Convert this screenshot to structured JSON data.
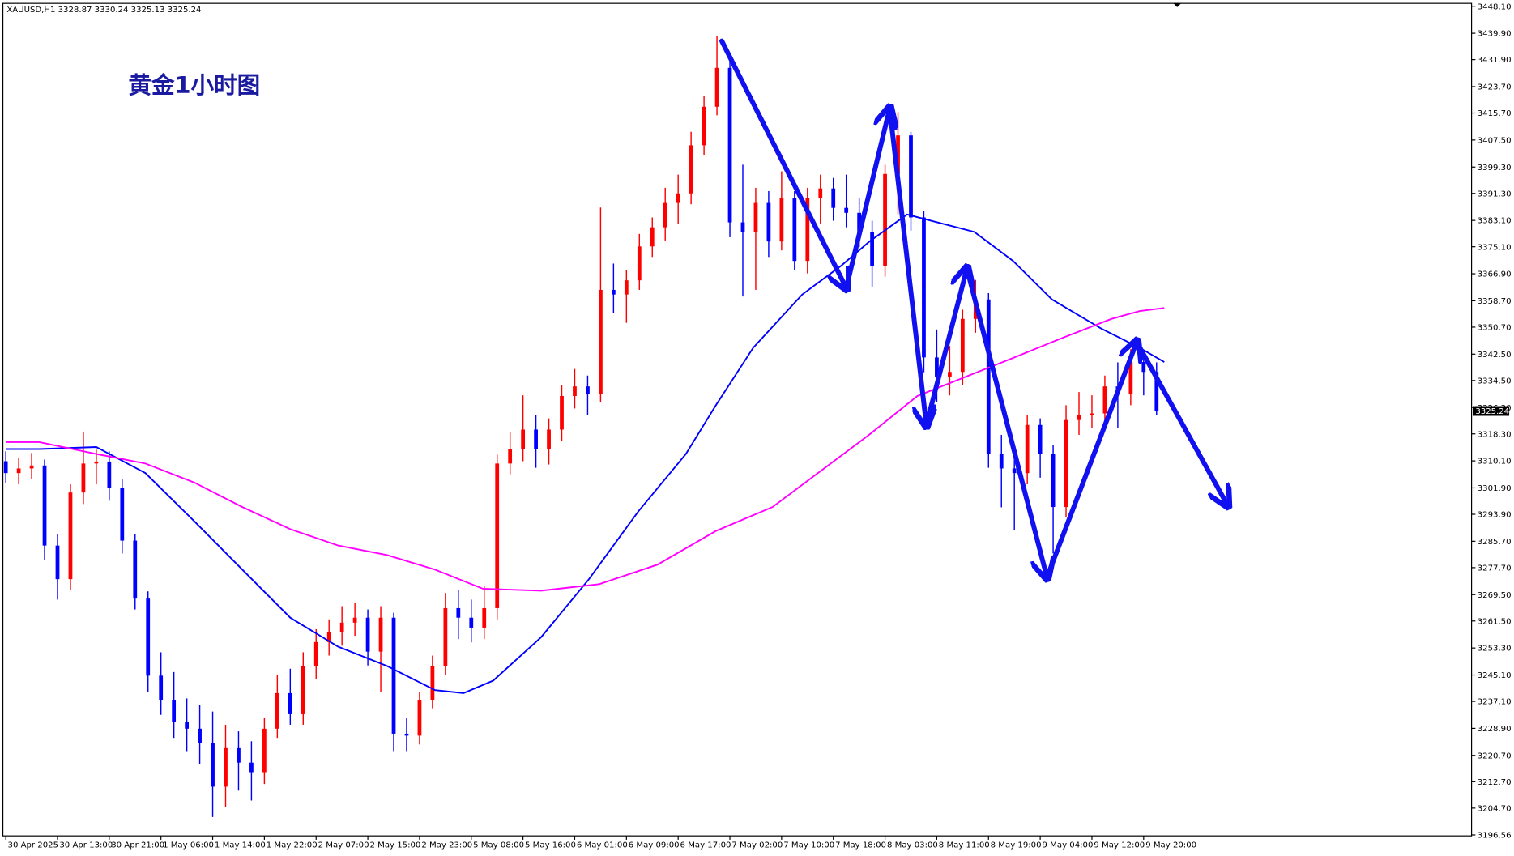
{
  "chart_data": {
    "type": "candlestick",
    "title": "黄金1小时图",
    "symbol_info": "XAUUSD,H1  3328.87 3330.24 3325.13 3325.24",
    "current_price": 3325.24,
    "up_color": "#ff0000",
    "down_color": "#0000ff",
    "ylim": [
      3196.56,
      3448.1
    ],
    "yticks": [
      {
        "value": 3448.1,
        "label": "3448.10"
      },
      {
        "value": 3439.9,
        "label": "3439.90"
      },
      {
        "value": 3431.9,
        "label": "3431.90"
      },
      {
        "value": 3423.7,
        "label": "3423.70"
      },
      {
        "value": 3415.7,
        "label": "3415.70"
      },
      {
        "value": 3407.5,
        "label": "3407.50"
      },
      {
        "value": 3399.3,
        "label": "3399.30"
      },
      {
        "value": 3391.3,
        "label": "3391.30"
      },
      {
        "value": 3383.1,
        "label": "3383.10"
      },
      {
        "value": 3375.1,
        "label": "3375.10"
      },
      {
        "value": 3366.9,
        "label": "3366.90"
      },
      {
        "value": 3358.7,
        "label": "3358.70"
      },
      {
        "value": 3350.7,
        "label": "3350.70"
      },
      {
        "value": 3342.5,
        "label": "3342.50"
      },
      {
        "value": 3334.5,
        "label": "3334.50"
      },
      {
        "value": 3326.3,
        "label": "3326.30"
      },
      {
        "value": 3318.3,
        "label": "3318.30"
      },
      {
        "value": 3310.1,
        "label": "3310.10"
      },
      {
        "value": 3301.9,
        "label": "3301.90"
      },
      {
        "value": 3293.9,
        "label": "3293.90"
      },
      {
        "value": 3285.7,
        "label": "3285.70"
      },
      {
        "value": 3277.7,
        "label": "3277.70"
      },
      {
        "value": 3269.5,
        "label": "3269.50"
      },
      {
        "value": 3261.5,
        "label": "3261.50"
      },
      {
        "value": 3253.3,
        "label": "3253.30"
      },
      {
        "value": 3245.1,
        "label": "3245.10"
      },
      {
        "value": 3237.1,
        "label": "3237.10"
      },
      {
        "value": 3228.9,
        "label": "3228.90"
      },
      {
        "value": 3220.7,
        "label": "3220.70"
      },
      {
        "value": 3212.7,
        "label": "3212.70"
      },
      {
        "value": 3204.7,
        "label": "3204.70"
      },
      3196.56
    ],
    "categories": [
      "30 Apr 2025",
      null,
      null,
      null,
      "30 Apr 13:00",
      null,
      null,
      null,
      "30 Apr 21:00",
      null,
      null,
      null,
      "1 May 06:00",
      null,
      null,
      null,
      "1 May 14:00",
      null,
      null,
      null,
      "1 May 22:00",
      null,
      null,
      null,
      "2 May 07:00",
      null,
      null,
      null,
      "2 May 15:00",
      null,
      null,
      null,
      "2 May 23:00",
      null,
      null,
      null,
      "5 May 08:00",
      null,
      null,
      null,
      "5 May 16:00",
      null,
      null,
      null,
      "6 May 01:00",
      null,
      null,
      null,
      "6 May 09:00",
      null,
      null,
      null,
      "6 May 17:00",
      null,
      null,
      null,
      "7 May 02:00",
      null,
      null,
      null,
      "7 May 10:00",
      null,
      null,
      null,
      "7 May 18:00",
      null,
      null,
      null,
      "8 May 03:00",
      null,
      null,
      null,
      "8 May 11:00",
      null,
      null,
      null,
      "8 May 19:00",
      null,
      null,
      null,
      "9 May 04:00",
      null,
      null,
      null,
      "9 May 12:00",
      null,
      null,
      null,
      "9 May 20:00",
      null
    ],
    "open": [
      3310.0,
      3306.4,
      3307.8,
      3308.7,
      3284.4,
      3274.2,
      3300.5,
      3309.3,
      3309.9,
      3302.0,
      3285.9,
      3268.3,
      3244.9,
      3237.6,
      3230.8,
      3228.8,
      3224.4,
      3211.2,
      3222.9,
      3218.5,
      3215.6,
      3228.8,
      3239.6,
      3233.2,
      3247.8,
      3255.1,
      3258.1,
      3261.0,
      3262.5,
      3252.2,
      3262.5,
      3227.3,
      3226.7,
      3237.6,
      3247.8,
      3265.4,
      3262.5,
      3259.5,
      3265.4,
      3309.3,
      3313.7,
      3319.6,
      3313.7,
      3319.6,
      3329.8,
      3332.7,
      3330.4,
      3362.0,
      3360.6,
      3364.9,
      3375.2,
      3381.0,
      3388.4,
      3391.3,
      3405.9,
      3417.6,
      3429.4,
      3382.5,
      3379.6,
      3388.4,
      3376.7,
      3389.8,
      3370.8,
      3389.8,
      3392.8,
      3386.9,
      3385.4,
      3379.6,
      3369.3,
      3397.2,
      3408.9,
      3384.0,
      3341.5,
      3335.7,
      3337.1,
      3353.2,
      3359.1,
      3312.2,
      3307.8,
      3306.4,
      3321.0,
      3312.2,
      3296.1,
      3322.5,
      3324.0,
      3324.5,
      3332.7,
      3330.4,
      3340.1,
      3337.1
    ],
    "high": [
      3313.0,
      3311.0,
      3312.5,
      3310.5,
      3288.0,
      3303.0,
      3319.0,
      3313.5,
      3313.0,
      3304.5,
      3288.0,
      3270.5,
      3252.0,
      3246.0,
      3238.0,
      3236.0,
      3234.0,
      3230.0,
      3228.0,
      3225.0,
      3232.0,
      3245.0,
      3247.0,
      3252.0,
      3259.0,
      3262.0,
      3266.0,
      3267.0,
      3265.0,
      3266.0,
      3264.0,
      3232.0,
      3240.0,
      3251.0,
      3270.0,
      3271.0,
      3268.0,
      3272.0,
      3312.0,
      3319.0,
      3330.0,
      3324.0,
      3323.0,
      3333.0,
      3338.0,
      3336.0,
      3387.0,
      3370.0,
      3368.0,
      3379.0,
      3384.0,
      3393.0,
      3397.0,
      3410.0,
      3421.0,
      3439.0,
      3432.0,
      3400.0,
      3393.0,
      3392.0,
      3398.0,
      3392.0,
      3393.0,
      3397.0,
      3396.0,
      3397.0,
      3390.0,
      3383.0,
      3400.0,
      3416.0,
      3410.0,
      3386.0,
      3350.0,
      3345.0,
      3356.0,
      3365.0,
      3361.0,
      3318.0,
      3312.0,
      3324.0,
      3323.0,
      3315.0,
      3327.0,
      3331.0,
      3330.0,
      3336.0,
      3340.0,
      3344.0,
      3343.0,
      3340.0
    ],
    "low": [
      3303.5,
      3303.0,
      3304.5,
      3280.0,
      3268.0,
      3271.0,
      3297.0,
      3303.0,
      3298.0,
      3282.0,
      3265.0,
      3240.0,
      3233.0,
      3226.0,
      3222.0,
      3218.0,
      3202.0,
      3205.0,
      3210.0,
      3207.0,
      3212.0,
      3226.0,
      3230.0,
      3230.0,
      3244.0,
      3251.0,
      3254.0,
      3257.0,
      3248.0,
      3240.0,
      3222.0,
      3222.0,
      3224.0,
      3235.0,
      3245.0,
      3256.0,
      3255.0,
      3256.0,
      3262.0,
      3306.0,
      3310.0,
      3308.0,
      3309.0,
      3316.0,
      3326.0,
      3324.0,
      3328.0,
      3355.0,
      3352.0,
      3362.0,
      3372.0,
      3377.0,
      3382.0,
      3388.0,
      3403.0,
      3415.0,
      3378.0,
      3360.0,
      3362.0,
      3372.0,
      3374.0,
      3368.0,
      3367.0,
      3382.0,
      3383.0,
      3381.0,
      3375.0,
      3363.0,
      3366.0,
      3385.0,
      3380.0,
      3337.0,
      3328.0,
      3330.0,
      3333.0,
      3349.0,
      3308.0,
      3296.0,
      3289.0,
      3303.0,
      3305.0,
      3282.0,
      3293.0,
      3318.0,
      3320.0,
      3321.0,
      3320.0,
      3327.0,
      3330.0,
      3324.0
    ],
    "close": [
      3306.4,
      3307.8,
      3308.7,
      3284.4,
      3274.2,
      3300.5,
      3309.3,
      3309.9,
      3302.0,
      3285.9,
      3268.3,
      3244.9,
      3237.6,
      3230.8,
      3228.8,
      3224.4,
      3211.2,
      3222.9,
      3218.5,
      3215.6,
      3228.8,
      3239.6,
      3233.2,
      3247.8,
      3255.1,
      3258.1,
      3261.0,
      3262.5,
      3252.2,
      3262.5,
      3227.3,
      3226.7,
      3237.6,
      3247.8,
      3265.4,
      3262.5,
      3259.5,
      3265.4,
      3309.3,
      3313.7,
      3319.6,
      3313.7,
      3319.6,
      3329.8,
      3332.7,
      3330.4,
      3362.0,
      3360.6,
      3364.9,
      3375.2,
      3381.0,
      3388.4,
      3391.3,
      3405.9,
      3417.6,
      3429.4,
      3382.5,
      3379.6,
      3388.4,
      3376.7,
      3389.8,
      3370.8,
      3389.8,
      3392.8,
      3386.9,
      3385.4,
      3379.6,
      3369.3,
      3397.2,
      3408.9,
      3384.0,
      3341.5,
      3335.7,
      3337.1,
      3353.2,
      3359.1,
      3312.2,
      3307.8,
      3306.4,
      3321.0,
      3312.2,
      3296.1,
      3322.5,
      3324.0,
      3324.5,
      3332.7,
      3330.4,
      3340.1,
      3337.1,
      3325.24
    ],
    "lines": [
      {
        "color": "#0000ff",
        "x": [
          0,
          2.6,
          7,
          10.8,
          14.6,
          18.3,
          22,
          25.7,
          29.5,
          33.2,
          35.4,
          37.7,
          41.4,
          45.1,
          48.9,
          52.6,
          54.9,
          57.8,
          61.6,
          64.6,
          66.8,
          69.7,
          74.9,
          77.9,
          80.9,
          84.7,
          87.7,
          89.6
        ],
        "values": [
          3313.7,
          3313.7,
          3314.3,
          3306.4,
          3291.7,
          3277.1,
          3262.5,
          3253.7,
          3247.8,
          3240.5,
          3239.6,
          3243.4,
          3256.6,
          3274.2,
          3294.7,
          3312.2,
          3326.9,
          3344.4,
          3360.6,
          3369.3,
          3376.7,
          3384.9,
          3379.6,
          3370.8,
          3359.1,
          3350.3,
          3344.4,
          3340.1
        ]
      },
      {
        "color": "#ff00ff",
        "x": [
          0,
          2.6,
          7,
          10.8,
          14.6,
          18.3,
          22,
          25.7,
          29.5,
          33.2,
          36.9,
          41.4,
          45.9,
          50.4,
          54.9,
          59.3,
          63.8,
          66.8,
          70.5,
          74.3,
          78,
          81.7,
          85.5,
          87.7,
          89.6
        ],
        "values": [
          3315.8,
          3315.8,
          3312.2,
          3309.3,
          3303.5,
          3296.1,
          3289.4,
          3284.4,
          3281.5,
          3277.1,
          3271.3,
          3270.7,
          3272.7,
          3278.6,
          3288.8,
          3296.1,
          3309.3,
          3318.1,
          3329.8,
          3335.7,
          3341.5,
          3347.4,
          3353.2,
          3355.6,
          3356.5
        ]
      }
    ]
  }
}
